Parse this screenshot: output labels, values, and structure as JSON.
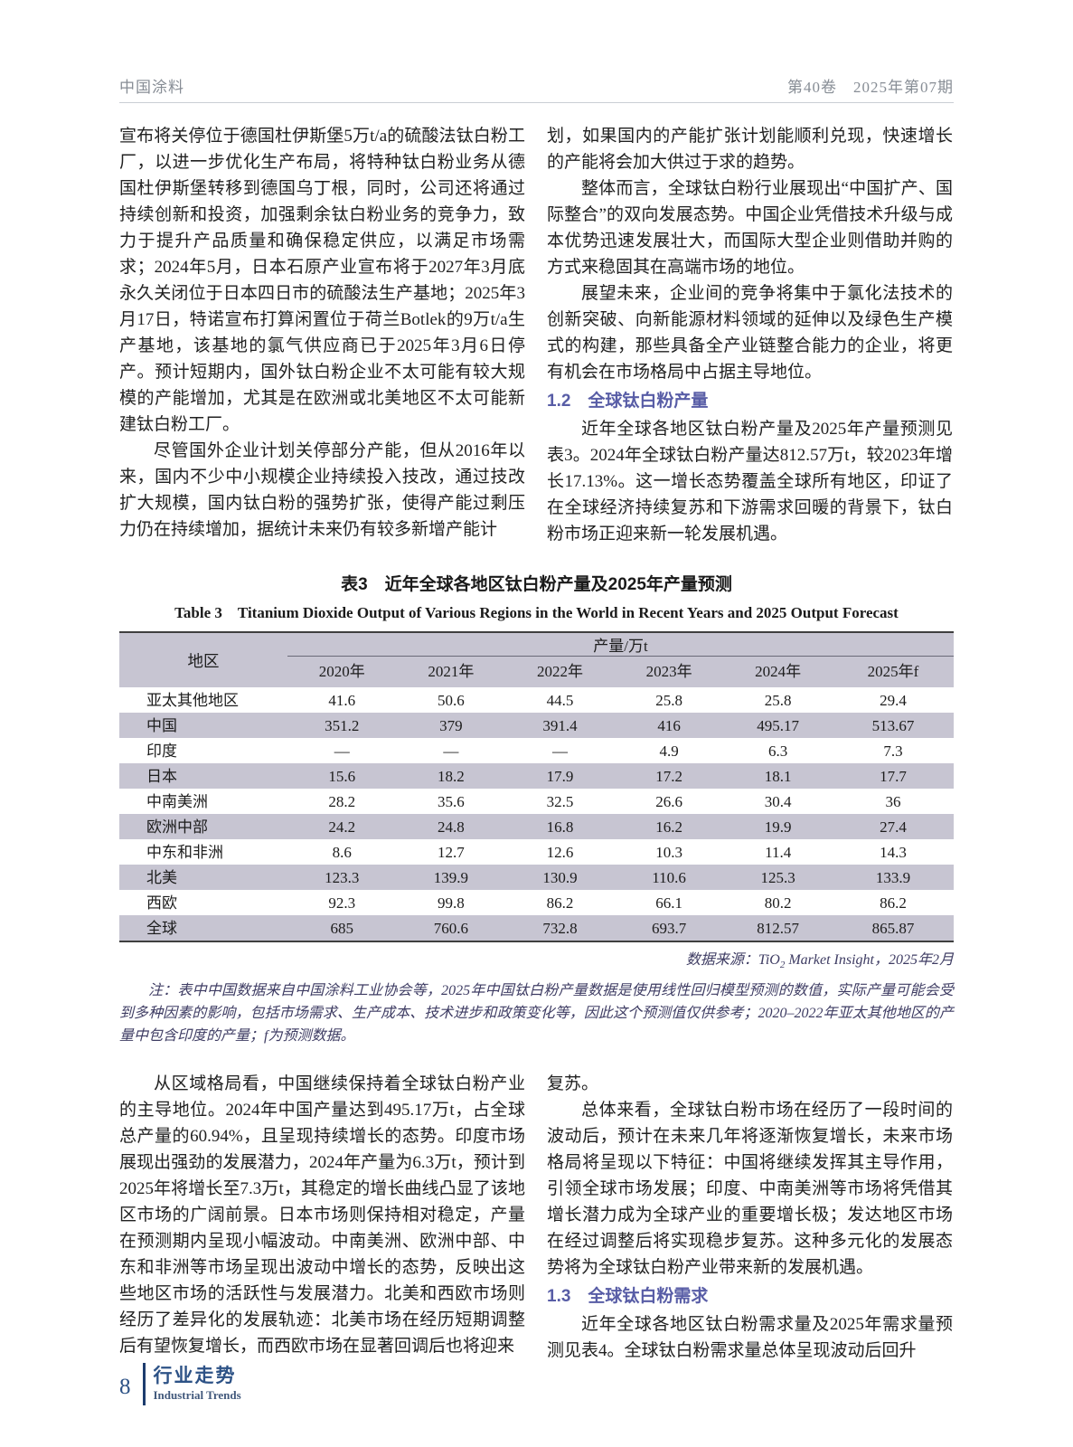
{
  "header": {
    "journal_name": "中国涂料",
    "issue_info": "第40卷　2025年第07期"
  },
  "top_left": {
    "p1": "宣布将关停位于德国杜伊斯堡5万t/a的硫酸法钛白粉工厂，以进一步优化生产布局，将特种钛白粉业务从德国杜伊斯堡转移到德国乌丁根，同时，公司还将通过持续创新和投资，加强剩余钛白粉业务的竞争力，致力于提升产品质量和确保稳定供应，以满足市场需求；2024年5月，日本石原产业宣布将于2027年3月底永久关闭位于日本四日市的硫酸法生产基地；2025年3月17日，特诺宣布打算闲置位于荷兰Botlek的9万t/a生产基地，该基地的氯气供应商已于2025年3月6日停产。预计短期内，国外钛白粉企业不太可能有较大规模的产能增加，尤其是在欧洲或北美地区不太可能新建钛白粉工厂。",
    "p2": "尽管国外企业计划关停部分产能，但从2016年以来，国内不少中小规模企业持续投入技改，通过技改扩大规模，国内钛白粉的强势扩张，使得产能过剩压力仍在持续增加，据统计未来仍有较多新增产能计"
  },
  "top_right": {
    "p1": "划，如果国内的产能扩张计划能顺利兑现，快速增长的产能将会加大供过于求的趋势。",
    "p2": "整体而言，全球钛白粉行业展现出“中国扩产、国际整合”的双向发展态势。中国企业凭借技术升级与成本优势迅速发展壮大，而国际大型企业则借助并购的方式来稳固其在高端市场的地位。",
    "p3": "展望未来，企业间的竞争将集中于氯化法技术的创新突破、向新能源材料领域的延伸以及绿色生产模式的构建，那些具备全产业链整合能力的企业，将更有机会在市场格局中占据主导地位。",
    "section_1_2": "1.2　全球钛白粉产量",
    "p4": "近年全球各地区钛白粉产量及2025年产量预测见表3。2024年全球钛白粉产量达812.57万t，较2023年增长17.13%。这一增长态势覆盖全球所有地区，印证了在全球经济持续复苏和下游需求回暖的背景下，钛白粉市场正迎来新一轮发展机遇。"
  },
  "table3": {
    "title_cn": "表3　近年全球各地区钛白粉产量及2025年产量预测",
    "title_en": "Table 3　Titanium Dioxide Output of Various Regions in the World in Recent Years and 2025 Output Forecast",
    "col_region": "地区",
    "col_group": "产量/万t",
    "years": [
      "2020年",
      "2021年",
      "2022年",
      "2023年",
      "2024年",
      "2025年f"
    ],
    "rows": [
      {
        "region": "亚太其他地区",
        "values": [
          "41.6",
          "50.6",
          "44.5",
          "25.8",
          "25.8",
          "29.4"
        ]
      },
      {
        "region": "中国",
        "values": [
          "351.2",
          "379",
          "391.4",
          "416",
          "495.17",
          "513.67"
        ]
      },
      {
        "region": "印度",
        "values": [
          "—",
          "—",
          "—",
          "4.9",
          "6.3",
          "7.3"
        ]
      },
      {
        "region": "日本",
        "values": [
          "15.6",
          "18.2",
          "17.9",
          "17.2",
          "18.1",
          "17.7"
        ]
      },
      {
        "region": "中南美洲",
        "values": [
          "28.2",
          "35.6",
          "32.5",
          "26.6",
          "30.4",
          "36"
        ]
      },
      {
        "region": "欧洲中部",
        "values": [
          "24.2",
          "24.8",
          "16.8",
          "16.2",
          "19.9",
          "27.4"
        ]
      },
      {
        "region": "中东和非洲",
        "values": [
          "8.6",
          "12.7",
          "12.6",
          "10.3",
          "11.4",
          "14.3"
        ]
      },
      {
        "region": "北美",
        "values": [
          "123.3",
          "139.9",
          "130.9",
          "110.6",
          "125.3",
          "133.9"
        ]
      },
      {
        "region": "西欧",
        "values": [
          "92.3",
          "99.8",
          "86.2",
          "66.1",
          "80.2",
          "86.2"
        ]
      },
      {
        "region": "全球",
        "values": [
          "685",
          "760.6",
          "732.8",
          "693.7",
          "812.57",
          "865.87"
        ]
      }
    ],
    "source_prefix": "数据来源：TiO",
    "source_sub": "2",
    "source_suffix": " Market Insight，2025年2月",
    "note": "注：表中中国数据来自中国涂料工业协会等，2025年中国钛白粉产量数据是使用线性回归模型预测的数值，实际产量可能会受到多种因素的影响，包括市场需求、生产成本、技术进步和政策变化等，因此这个预测值仅供参考；2020–2022年亚太其他地区的产量中包含印度的产量；f为预测数据。"
  },
  "bottom_left": {
    "p1": "从区域格局看，中国继续保持着全球钛白粉产业的主导地位。2024年中国产量达到495.17万t，占全球总产量的60.94%，且呈现持续增长的态势。印度市场展现出强劲的发展潜力，2024年产量为6.3万t，预计到2025年将增长至7.3万t，其稳定的增长曲线凸显了该地区市场的广阔前景。日本市场则保持相对稳定，产量在预测期内呈现小幅波动。中南美洲、欧洲中部、中东和非洲等市场呈现出波动中增长的态势，反映出这些地区市场的活跃性与发展潜力。北美和西欧市场则经历了差异化的发展轨迹：北美市场在经历短期调整后有望恢复增长，而西欧市场在显著回调后也将迎来"
  },
  "bottom_right": {
    "p1": "复苏。",
    "p2": "总体来看，全球钛白粉市场在经历了一段时间的波动后，预计在未来几年将逐渐恢复增长，未来市场格局将呈现以下特征：中国将继续发挥其主导作用，引领全球市场发展；印度、中南美洲等市场将凭借其增长潜力成为全球产业的重要增长极；发达地区市场在经过调整后将实现稳步复苏。这种多元化的发展态势将为全球钛白粉产业带来新的发展机遇。",
    "section_1_3": "1.3　全球钛白粉需求",
    "p3": "近年全球各地区钛白粉需求量及2025年需求量预测见表4。全球钛白粉需求量总体呈现波动后回升"
  },
  "footer": {
    "page_number": "8",
    "column_cn": "行业走势",
    "column_en": "Industrial Trends"
  },
  "colors": {
    "section_heading": "#585da6",
    "table_band": "#c7c5d2",
    "note_text": "#3e3c63",
    "footer_blue": "#2d5286",
    "footer_bar": "#1d3c6e",
    "running_head_gray": "#878d95"
  }
}
